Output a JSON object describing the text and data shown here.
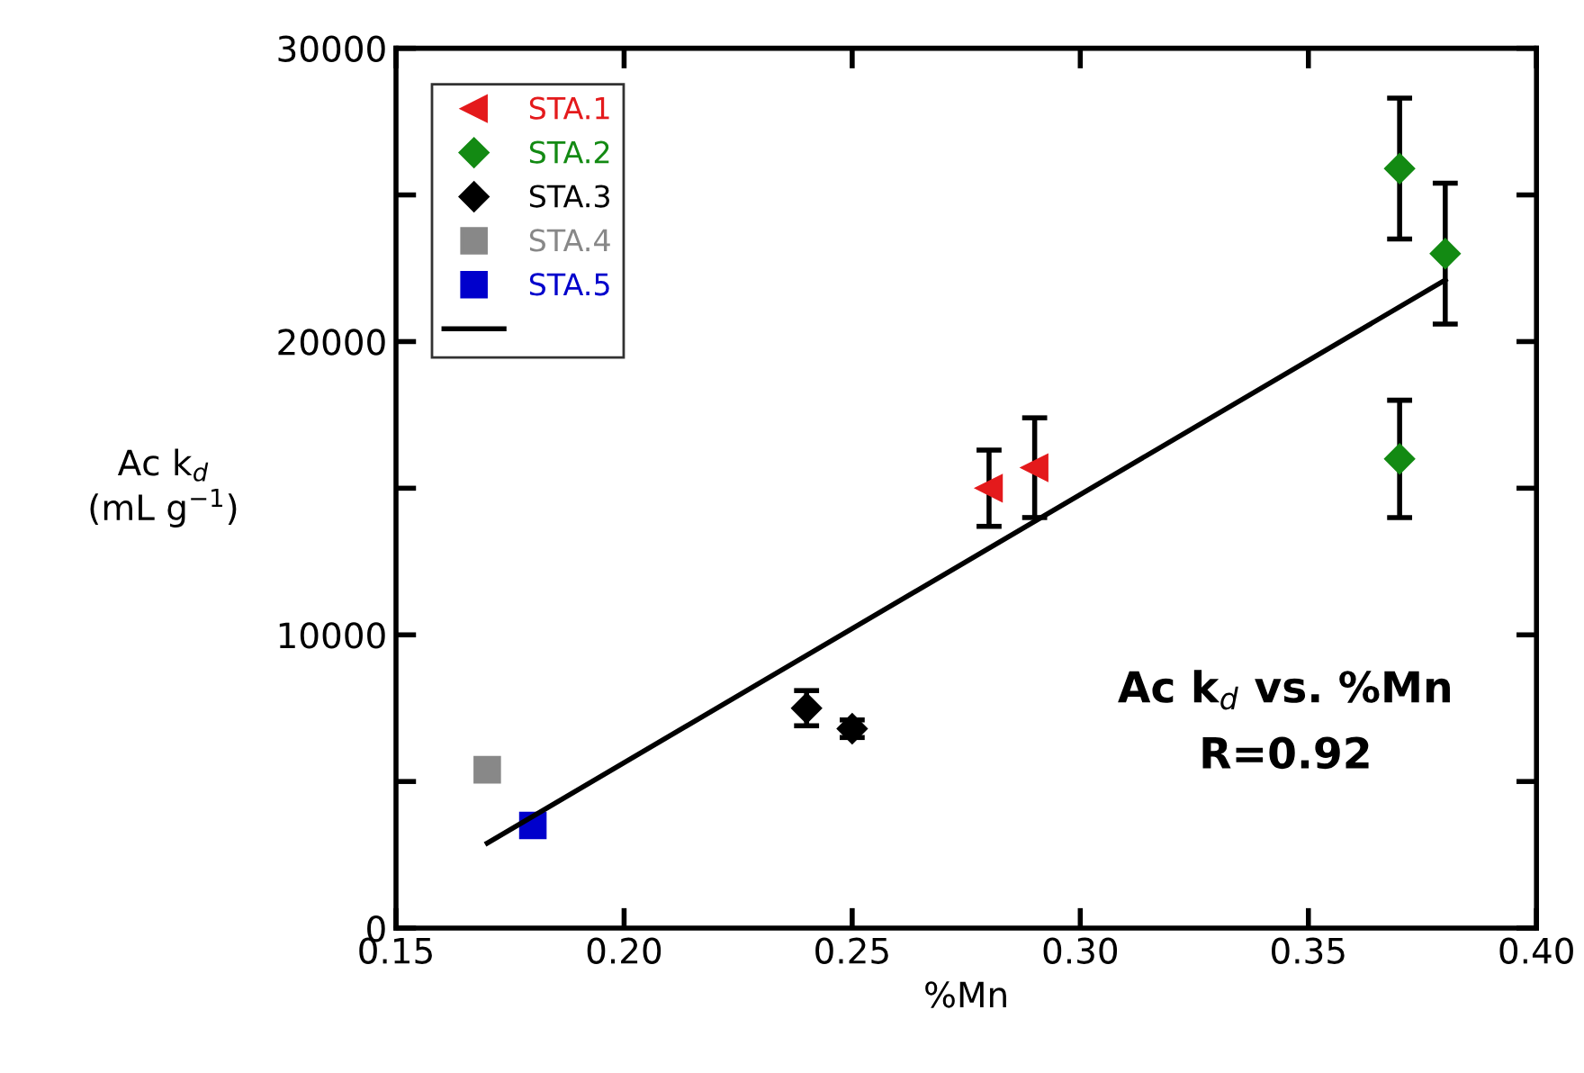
{
  "chart_data": {
    "type": "scatter",
    "xlabel": "%Mn",
    "ylabel": "Ac k$_{d}$\n(mL g$^{−1}$)",
    "xlim": [
      0.15,
      0.4
    ],
    "xticks": [
      {
        "value": 0.15,
        "label": "0.15"
      },
      {
        "value": 0.2,
        "label": "0.20"
      },
      {
        "value": 0.25,
        "label": "0.25"
      },
      {
        "value": 0.3,
        "label": "0.30"
      },
      {
        "value": 0.35,
        "label": "0.35"
      },
      {
        "value": 0.4,
        "label": "0.40"
      }
    ],
    "ylim": [
      0,
      30000
    ],
    "yticks": [
      0,
      {
        "value": 5000,
        "label": null
      },
      10000,
      {
        "value": 15000,
        "label": null
      },
      20000,
      {
        "value": 25000,
        "label": null
      },
      30000
    ],
    "legend": "top left",
    "grid": false,
    "annotations": [
      "Ac k$_{d}$ vs. %Mn",
      "R=0.92"
    ],
    "series": [
      {
        "name": "STA.1",
        "color": "#e41a1c",
        "marker": "triangle",
        "x": [
          0.28,
          0.29
        ],
        "values": [
          15000,
          15700
        ],
        "errors": [
          1300,
          1700
        ]
      },
      {
        "name": "STA.2",
        "color": "#138a13",
        "marker": "diamond",
        "x": [
          0.37,
          0.38,
          0.37
        ],
        "values": [
          25900,
          23000,
          16000
        ],
        "errors": [
          2400,
          2400,
          2000
        ]
      },
      {
        "name": "STA.3",
        "color": "#000000",
        "marker": "diamond",
        "x": [
          0.24,
          0.25
        ],
        "values": [
          7500,
          6800
        ],
        "errors": [
          600,
          300
        ]
      },
      {
        "name": "STA.4",
        "color": "#888888",
        "marker": "square",
        "x": [
          0.17
        ],
        "values": [
          5400
        ]
      },
      {
        "name": "STA.5",
        "color": "#0000cc",
        "marker": "square",
        "x": [
          0.18
        ],
        "values": [
          3500
        ]
      },
      {
        "type": "line",
        "color": "#000000",
        "marker": "none",
        "x": [
          0.17,
          0.38
        ],
        "values": [
          2900,
          22100
        ]
      }
    ]
  }
}
